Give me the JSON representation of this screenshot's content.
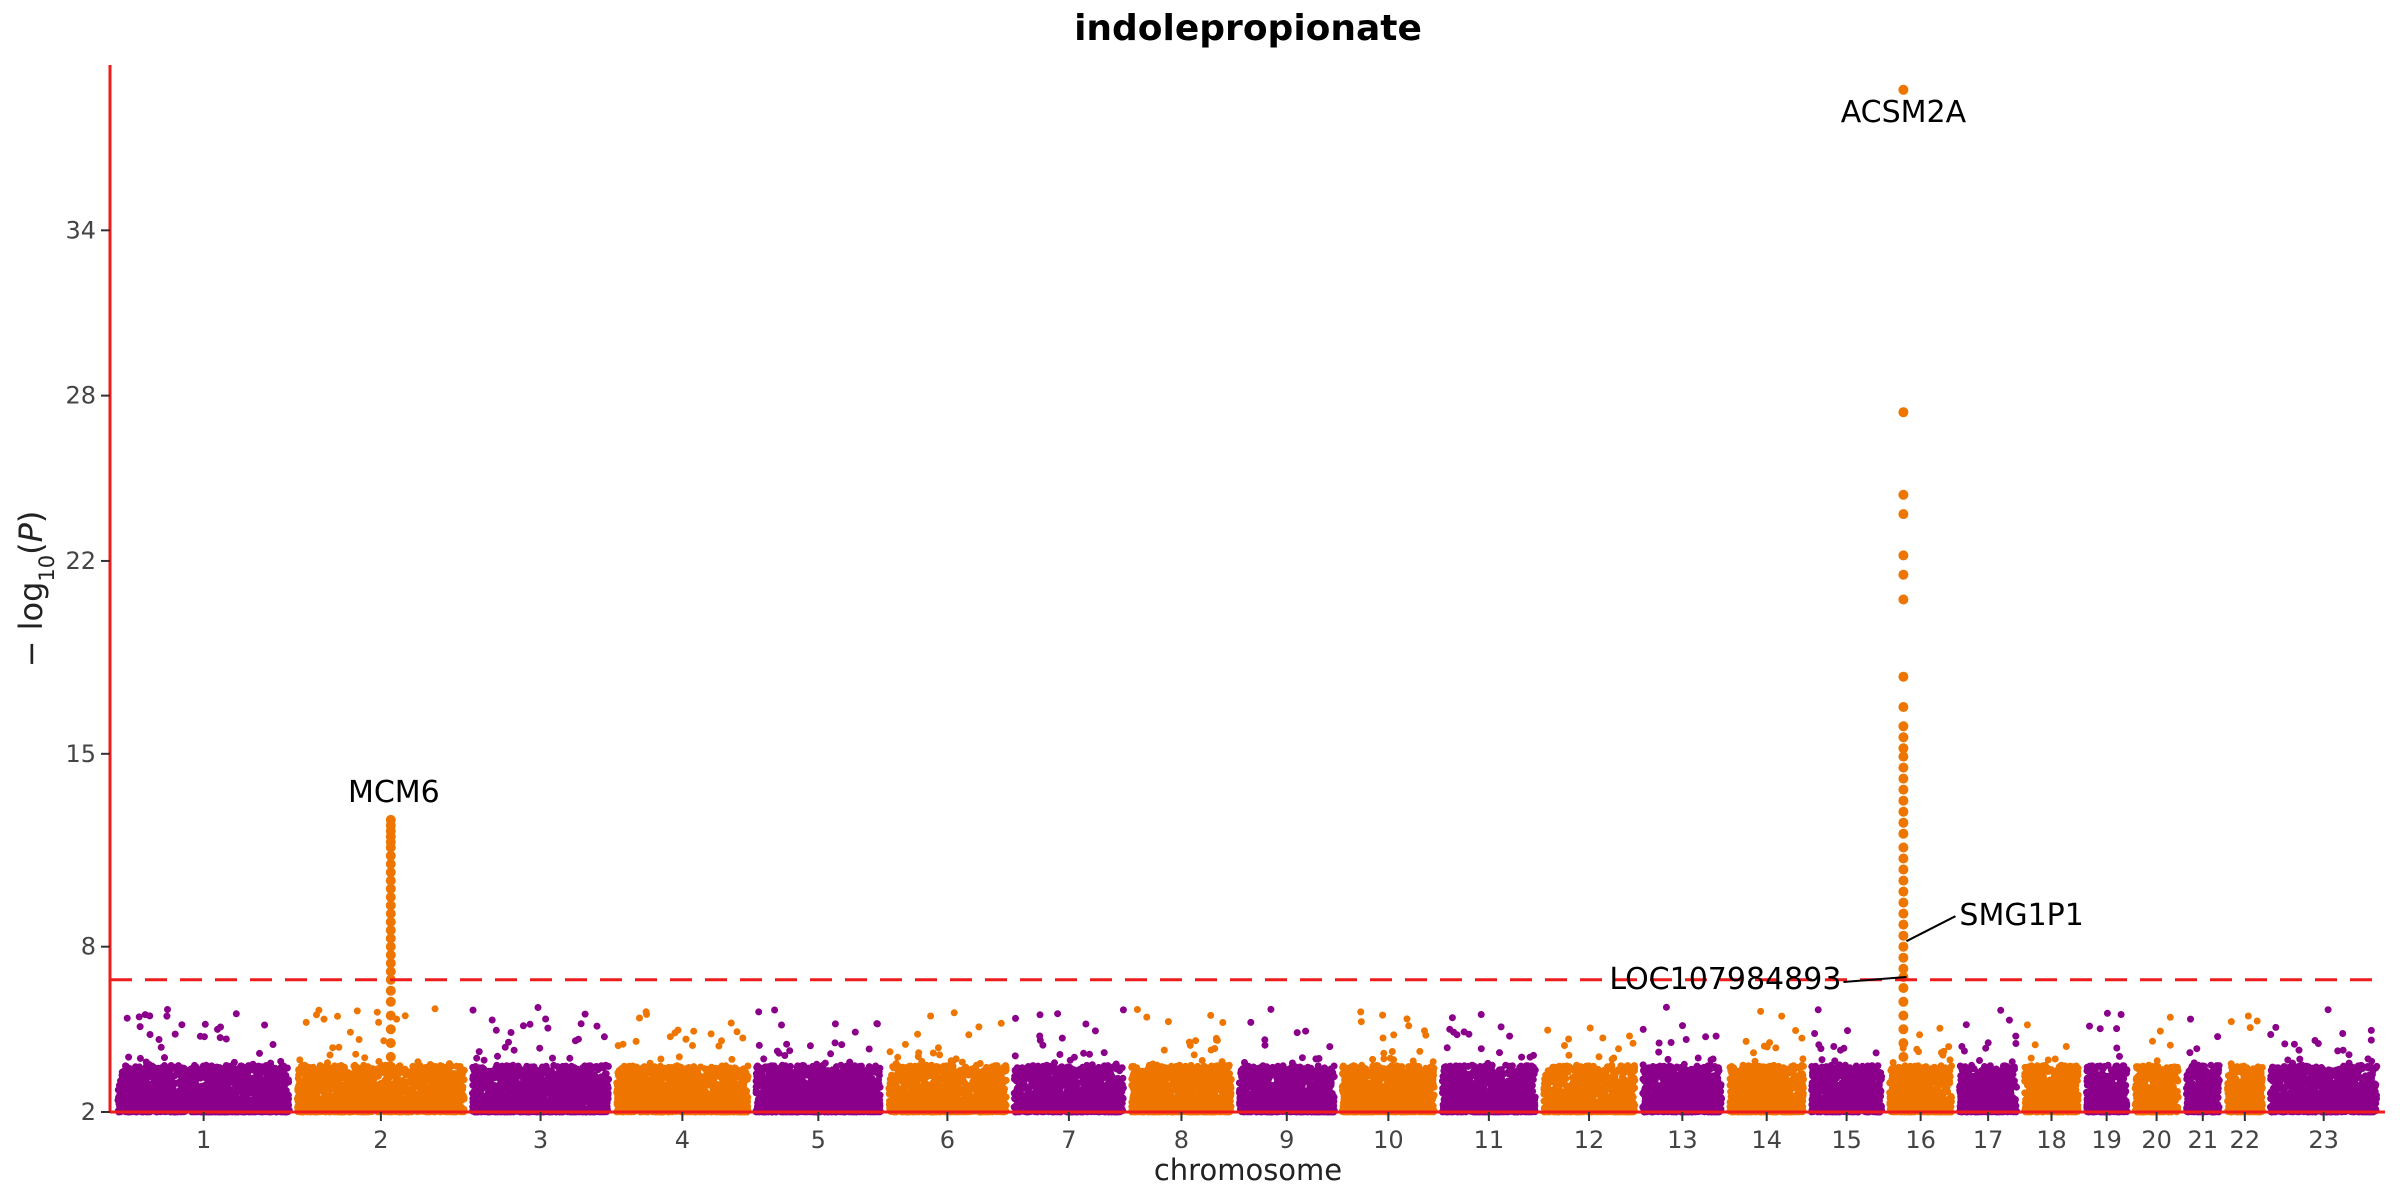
{
  "chart_data": {
    "type": "scatter",
    "title": "indolepropionate",
    "xlabel": "chromosome",
    "ylabel": "-log10(P)",
    "ylim": [
      2,
      40
    ],
    "yticks": [
      2,
      8,
      15,
      22,
      28,
      34
    ],
    "significance_threshold": 6.8,
    "threshold_line_color": "#ee1c1c",
    "axis_color": "#ee1c1c",
    "colors": [
      "#8b008b",
      "#ee7600"
    ],
    "chromosomes": [
      {
        "label": "1",
        "bp_mb": 249
      },
      {
        "label": "2",
        "bp_mb": 243
      },
      {
        "label": "3",
        "bp_mb": 198
      },
      {
        "label": "4",
        "bp_mb": 191
      },
      {
        "label": "5",
        "bp_mb": 181
      },
      {
        "label": "6",
        "bp_mb": 171
      },
      {
        "label": "7",
        "bp_mb": 159
      },
      {
        "label": "8",
        "bp_mb": 145
      },
      {
        "label": "9",
        "bp_mb": 138
      },
      {
        "label": "10",
        "bp_mb": 134
      },
      {
        "label": "11",
        "bp_mb": 135
      },
      {
        "label": "12",
        "bp_mb": 133
      },
      {
        "label": "13",
        "bp_mb": 115
      },
      {
        "label": "14",
        "bp_mb": 107
      },
      {
        "label": "15",
        "bp_mb": 102
      },
      {
        "label": "16",
        "bp_mb": 90
      },
      {
        "label": "17",
        "bp_mb": 83
      },
      {
        "label": "18",
        "bp_mb": 78
      },
      {
        "label": "19",
        "bp_mb": 59
      },
      {
        "label": "20",
        "bp_mb": 63
      },
      {
        "label": "21",
        "bp_mb": 48
      },
      {
        "label": "22",
        "bp_mb": 51
      },
      {
        "label": "23",
        "bp_mb": 155
      }
    ],
    "peaks": [
      {
        "chromosome": "2",
        "pos_mb": 136,
        "values": [
          12.6,
          12.4,
          12.2,
          12.0,
          11.8,
          11.6,
          11.3,
          11.0,
          10.7,
          10.4,
          10.1,
          9.8,
          9.5,
          9.2,
          8.9,
          8.6,
          8.3,
          8.0,
          7.7,
          7.4,
          7.1,
          6.8,
          6.4,
          6.0,
          5.5,
          5.0,
          4.5,
          4.0,
          3.5
        ]
      },
      {
        "chromosome": "16",
        "pos_mb": 20,
        "values": [
          39.1,
          27.4,
          24.4,
          23.7,
          22.2,
          21.5,
          20.6,
          17.8,
          16.7,
          16.0,
          15.6,
          15.2,
          14.9,
          14.5,
          14.1,
          13.7,
          13.3,
          12.9,
          12.5,
          12.1,
          11.6,
          11.2,
          10.8,
          10.4,
          10.0,
          9.6,
          9.2,
          8.8,
          8.4,
          8.0,
          7.6,
          7.2,
          6.9,
          6.5,
          6.0,
          5.5,
          5.0,
          4.5,
          4.0
        ]
      }
    ],
    "annotations": [
      {
        "label": "MCM6",
        "chromosome": "2",
        "pos_mb": 136,
        "value": 12.6
      },
      {
        "label": "ACSM2A",
        "chromosome": "16",
        "pos_mb": 20,
        "value": 39.1
      },
      {
        "label": "SMG1P1",
        "chromosome": "16",
        "pos_mb": 20,
        "value": 8.2
      },
      {
        "label": "LOC107984893",
        "chromosome": "16",
        "pos_mb": 20,
        "value": 6.9
      }
    ]
  }
}
